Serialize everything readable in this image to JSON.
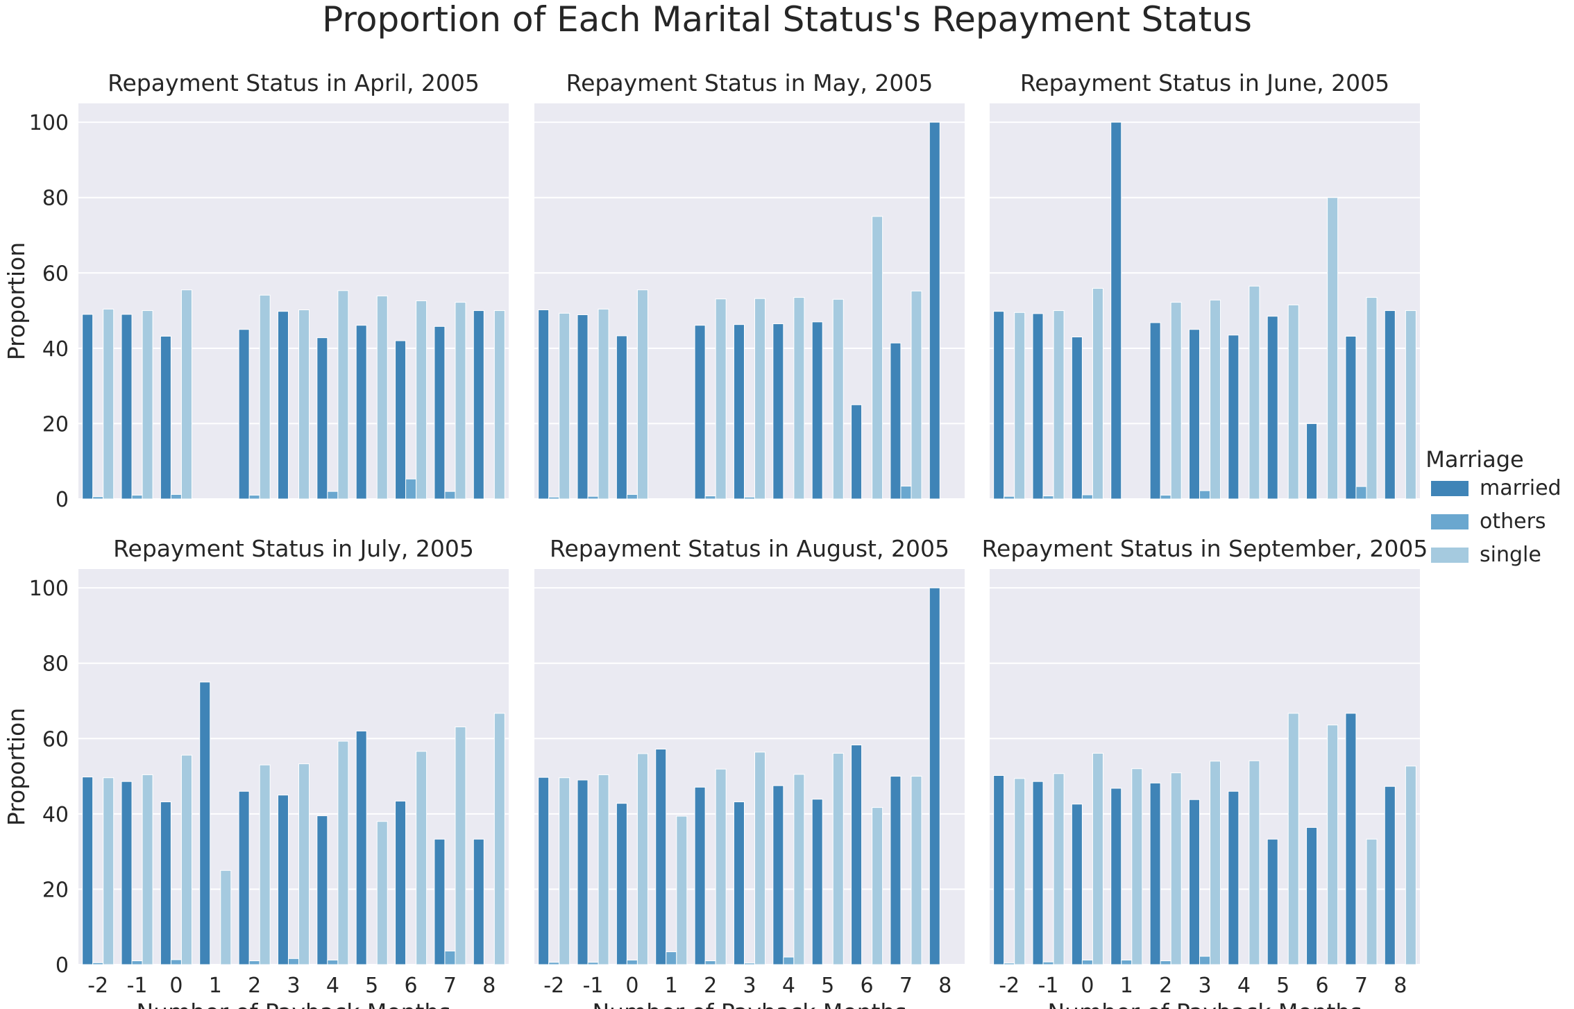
{
  "title": "Proportion of Each Marital Status's Repayment Status",
  "legend": {
    "title": "Marriage",
    "placement": "right",
    "entries": [
      {
        "name": "married",
        "color": "#3f84b7"
      },
      {
        "name": "others",
        "color": "#6aa7cf"
      },
      {
        "name": "single",
        "color": "#a5cadf"
      }
    ]
  },
  "chart_data": [
    {
      "type": "bar",
      "title": "Repayment Status in April, 2005",
      "xlabel": "",
      "ylabel": "Proportion",
      "ylim": [
        0,
        105
      ],
      "grid": true,
      "categories": [
        "-2",
        "-1",
        "0",
        "1",
        "2",
        "3",
        "4",
        "5",
        "6",
        "7",
        "8"
      ],
      "series": [
        {
          "name": "married",
          "values": [
            49,
            49,
            43.2,
            0,
            45,
            49.8,
            42.8,
            46.1,
            42,
            45.8,
            50
          ]
        },
        {
          "name": "others",
          "values": [
            0.6,
            1,
            1.2,
            0,
            1,
            0,
            2,
            0,
            5.3,
            2,
            0
          ]
        },
        {
          "name": "single",
          "values": [
            50.4,
            50,
            55.5,
            0,
            54.1,
            50.2,
            55.3,
            53.9,
            52.6,
            52.2,
            50
          ]
        }
      ]
    },
    {
      "type": "bar",
      "title": "Repayment Status in May, 2005",
      "xlabel": "",
      "ylabel": "",
      "ylim": [
        0,
        105
      ],
      "grid": true,
      "categories": [
        "-2",
        "-1",
        "0",
        "1",
        "2",
        "3",
        "4",
        "5",
        "6",
        "7",
        "8"
      ],
      "series": [
        {
          "name": "married",
          "values": [
            50.2,
            48.9,
            43.3,
            0,
            46.1,
            46.3,
            46.5,
            47,
            25,
            41.4,
            100
          ]
        },
        {
          "name": "others",
          "values": [
            0.5,
            0.7,
            1.2,
            0,
            0.8,
            0.5,
            0,
            0,
            0,
            3.4,
            0
          ]
        },
        {
          "name": "single",
          "values": [
            49.3,
            50.4,
            55.5,
            0,
            53.1,
            53.2,
            53.5,
            53,
            75,
            55.2,
            0
          ]
        }
      ]
    },
    {
      "type": "bar",
      "title": "Repayment Status in June, 2005",
      "xlabel": "",
      "ylabel": "",
      "ylim": [
        0,
        105
      ],
      "grid": true,
      "categories": [
        "-2",
        "-1",
        "0",
        "1",
        "2",
        "3",
        "4",
        "5",
        "6",
        "7",
        "8"
      ],
      "series": [
        {
          "name": "married",
          "values": [
            49.8,
            49.2,
            43,
            100,
            46.8,
            45,
            43.5,
            48.5,
            20,
            43.2,
            50
          ]
        },
        {
          "name": "others",
          "values": [
            0.7,
            0.8,
            1.1,
            0,
            1,
            2.2,
            0,
            0,
            0,
            3.3,
            0
          ]
        },
        {
          "name": "single",
          "values": [
            49.5,
            50,
            55.9,
            0,
            52.2,
            52.8,
            56.5,
            51.5,
            80,
            53.5,
            50
          ]
        }
      ]
    },
    {
      "type": "bar",
      "title": "Repayment Status in July, 2005",
      "xlabel": "Number of Payback Months",
      "ylabel": "Proportion",
      "ylim": [
        0,
        105
      ],
      "grid": true,
      "categories": [
        "-2",
        "-1",
        "0",
        "1",
        "2",
        "3",
        "4",
        "5",
        "6",
        "7",
        "8"
      ],
      "series": [
        {
          "name": "married",
          "values": [
            49.8,
            48.6,
            43.2,
            75,
            46,
            45,
            39.5,
            62,
            43.4,
            33.3,
            33.3
          ]
        },
        {
          "name": "others",
          "values": [
            0.5,
            1,
            1.3,
            0,
            1,
            1.6,
            1.2,
            0,
            0,
            3.6,
            0
          ]
        },
        {
          "name": "single",
          "values": [
            49.6,
            50.4,
            55.6,
            25,
            53,
            53.3,
            59.3,
            38,
            56.6,
            63.1,
            66.7
          ]
        }
      ]
    },
    {
      "type": "bar",
      "title": "Repayment Status in August, 2005",
      "xlabel": "Number of Payback Months",
      "ylabel": "",
      "ylim": [
        0,
        105
      ],
      "grid": true,
      "categories": [
        "-2",
        "-1",
        "0",
        "1",
        "2",
        "3",
        "4",
        "5",
        "6",
        "7",
        "8"
      ],
      "series": [
        {
          "name": "married",
          "values": [
            49.7,
            49,
            42.8,
            57.2,
            47.1,
            43.2,
            47.5,
            43.9,
            58.3,
            50,
            100
          ]
        },
        {
          "name": "others",
          "values": [
            0.6,
            0.6,
            1.2,
            3.4,
            1,
            0.4,
            2,
            0,
            0,
            0,
            0
          ]
        },
        {
          "name": "single",
          "values": [
            49.6,
            50.4,
            56,
            39.4,
            51.9,
            56.4,
            50.5,
            56.1,
            41.7,
            50,
            0
          ]
        }
      ]
    },
    {
      "type": "bar",
      "title": "Repayment Status in September, 2005",
      "xlabel": "Number of Payback Months",
      "ylabel": "",
      "ylim": [
        0,
        105
      ],
      "grid": true,
      "categories": [
        "-2",
        "-1",
        "0",
        "1",
        "2",
        "3",
        "4",
        "5",
        "6",
        "7",
        "8"
      ],
      "series": [
        {
          "name": "married",
          "values": [
            50.2,
            48.6,
            42.6,
            46.8,
            48.2,
            43.8,
            46,
            33.3,
            36.4,
            66.7,
            47.3
          ]
        },
        {
          "name": "others",
          "values": [
            0.4,
            0.7,
            1.2,
            1.2,
            1,
            2.2,
            0,
            0,
            0,
            0,
            0
          ]
        },
        {
          "name": "single",
          "values": [
            49.4,
            50.7,
            56.1,
            52,
            50.9,
            54,
            54.1,
            66.7,
            63.6,
            33.3,
            52.7
          ]
        }
      ]
    }
  ]
}
